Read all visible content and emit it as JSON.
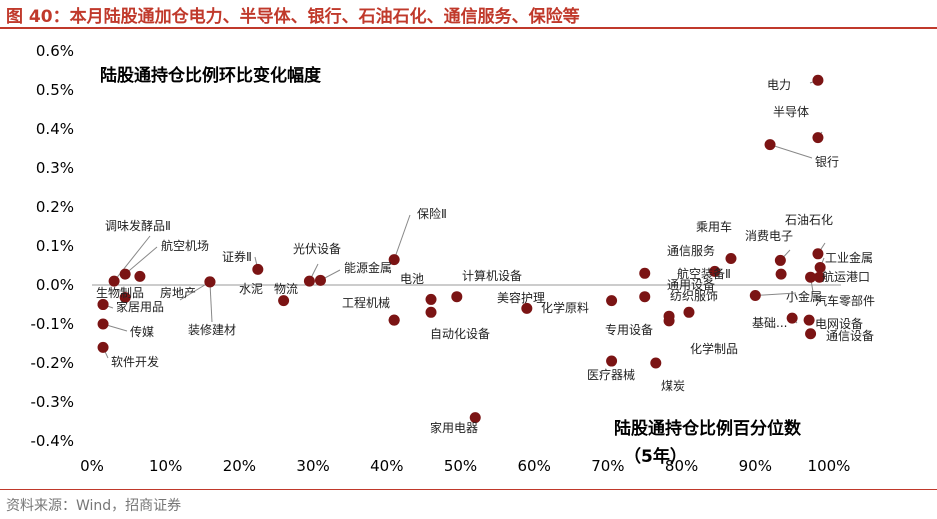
{
  "figure": {
    "title": "图 40：本月陆股通加仓电力、半导体、银行、石油石化、通信服务、保险等",
    "source": "资料来源：Wind，招商证券"
  },
  "colors": {
    "point": "#7b1414",
    "accent": "#c0392b",
    "baseline": "#999999",
    "leader": "#888888"
  },
  "chart_data": {
    "type": "scatter",
    "title": "陆股通持仓比例环比变化幅度",
    "xlabel": "陆股通持仓比例百分位数",
    "xlabel2": "（5年）",
    "xlim": [
      0,
      100
    ],
    "ylim": [
      -0.4,
      0.6
    ],
    "xticks": [
      "0%",
      "10%",
      "20%",
      "30%",
      "40%",
      "50%",
      "60%",
      "70%",
      "80%",
      "90%",
      "100%"
    ],
    "yticks": [
      "0.6%",
      "0.5%",
      "0.4%",
      "0.3%",
      "0.2%",
      "0.1%",
      "0.0%",
      "-0.1%",
      "-0.2%",
      "-0.3%",
      "-0.4%"
    ],
    "grid": false,
    "points": [
      {
        "label": "电力",
        "x": 98.5,
        "y": 0.525
      },
      {
        "label": "半导体",
        "x": 98.5,
        "y": 0.378
      },
      {
        "label": "银行",
        "x": 92.0,
        "y": 0.36
      },
      {
        "label": "石油石化",
        "x": 98.5,
        "y": 0.08
      },
      {
        "label": "工业金属",
        "x": 98.8,
        "y": 0.045
      },
      {
        "label": "航运港口",
        "x": 98.7,
        "y": 0.02
      },
      {
        "label": "汽车零部件",
        "x": 97.5,
        "y": 0.02
      },
      {
        "label": "消费电子",
        "x": 93.4,
        "y": 0.063
      },
      {
        "label": "",
        "x": 93.5,
        "y": 0.028
      },
      {
        "label": "小金属",
        "x": 90.0,
        "y": -0.027
      },
      {
        "label": "基础...",
        "x": 95.0,
        "y": -0.085
      },
      {
        "label": "电网设备",
        "x": 97.3,
        "y": -0.09
      },
      {
        "label": "通信设备",
        "x": 97.5,
        "y": -0.125
      },
      {
        "label": "乘用车",
        "x": 86.7,
        "y": 0.068
      },
      {
        "label": "通信服务",
        "x": 75.0,
        "y": 0.03
      },
      {
        "label": "航空装备Ⅱ",
        "x": 84.5,
        "y": 0.035
      },
      {
        "label": "通用设备",
        "x": 75.0,
        "y": -0.03
      },
      {
        "label": "纺织服饰",
        "x": 81.0,
        "y": -0.07
      },
      {
        "label": "",
        "x": 78.3,
        "y": -0.08
      },
      {
        "label": "化学制品",
        "x": 78.3,
        "y": -0.092
      },
      {
        "label": "专用设备",
        "x": 70.5,
        "y": -0.04
      },
      {
        "label": "医疗器械",
        "x": 70.5,
        "y": -0.195
      },
      {
        "label": "煤炭",
        "x": 76.5,
        "y": -0.2
      },
      {
        "label": "化学原料",
        "x": 59.0,
        "y": -0.06
      },
      {
        "label": "美容护理",
        "x": 49.5,
        "y": -0.03
      },
      {
        "label": "计算机设备",
        "x": 46.0,
        "y": -0.037
      },
      {
        "label": "自动化设备",
        "x": 46.0,
        "y": -0.07
      },
      {
        "label": "保险Ⅱ",
        "x": 41.0,
        "y": 0.065
      },
      {
        "label": "电池",
        "x": 41.0,
        "y": -0.09
      },
      {
        "label": "工程机械",
        "x": 41.0,
        "y": -0.09
      },
      {
        "label": "家用电器",
        "x": 52.0,
        "y": -0.34
      },
      {
        "label": "光伏设备",
        "x": 29.5,
        "y": 0.01
      },
      {
        "label": "能源金属",
        "x": 31.0,
        "y": 0.012
      },
      {
        "label": "物流",
        "x": 26.0,
        "y": -0.04
      },
      {
        "label": "证券Ⅱ",
        "x": 22.5,
        "y": 0.04
      },
      {
        "label": "房地产",
        "x": 16.0,
        "y": 0.008
      },
      {
        "label": "装修建材",
        "x": 16.0,
        "y": 0.008
      },
      {
        "label": "调味发酵品Ⅱ",
        "x": 3.0,
        "y": 0.01
      },
      {
        "label": "航空机场",
        "x": 4.5,
        "y": 0.028
      },
      {
        "label": "水泥",
        "x": 6.5,
        "y": 0.022
      },
      {
        "label": "",
        "x": 4.5,
        "y": -0.032
      },
      {
        "label": "生物制品",
        "x": 1.5,
        "y": -0.05
      },
      {
        "label": "家居用品",
        "x": 1.5,
        "y": -0.05
      },
      {
        "label": "传媒",
        "x": 1.5,
        "y": -0.1
      },
      {
        "label": "软件开发",
        "x": 1.5,
        "y": -0.16
      }
    ]
  }
}
